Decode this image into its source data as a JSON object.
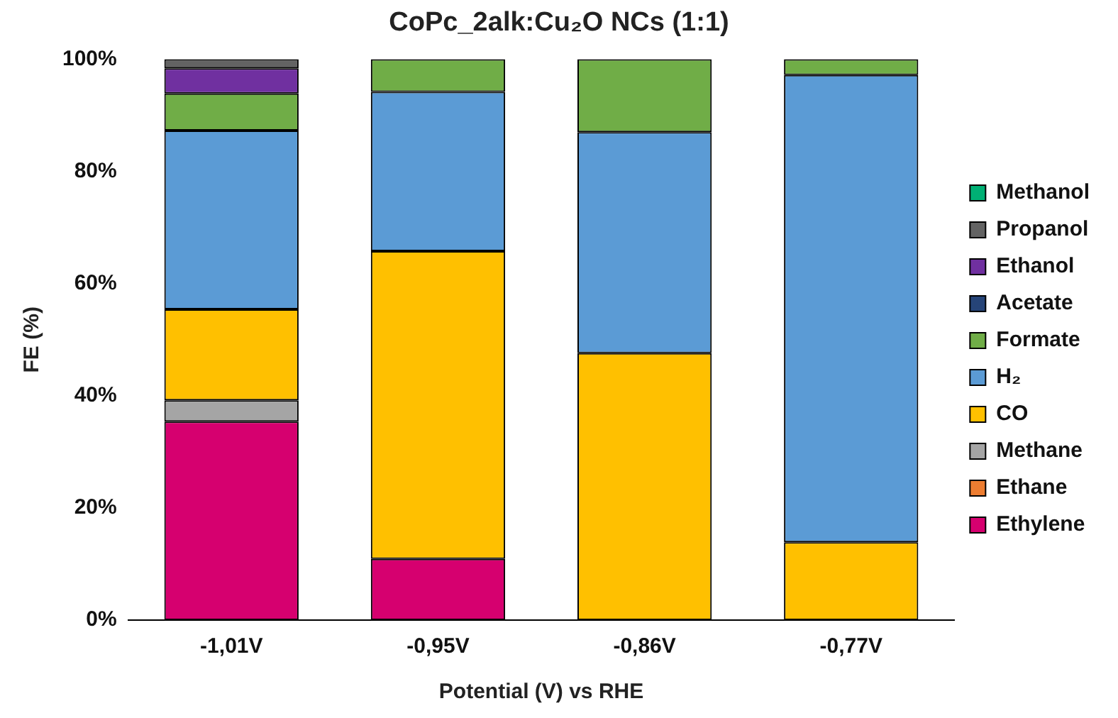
{
  "chart_data": {
    "type": "bar",
    "stacked": true,
    "title": "CoPc_2alk:Cu₂O NCs (1:1)",
    "xlabel": "Potential (V) vs RHE",
    "ylabel": "FE (%)",
    "categories": [
      "-1,01V",
      "-0,95V",
      "-0,86V",
      "-0,77V"
    ],
    "series": [
      {
        "name": "Ethylene",
        "color": "#d6006f",
        "values": [
          35.4,
          10.9,
          0,
          0
        ]
      },
      {
        "name": "Ethane",
        "color": "#ed7d31",
        "values": [
          0,
          0,
          0,
          0
        ]
      },
      {
        "name": "Methane",
        "color": "#a5a5a5",
        "values": [
          3.8,
          0,
          0,
          0
        ]
      },
      {
        "name": "CO",
        "color": "#ffc000",
        "values": [
          16.2,
          54.9,
          47.6,
          13.9
        ]
      },
      {
        "name": "H₂",
        "color": "#5b9bd5",
        "values": [
          31.9,
          28.4,
          39.4,
          83.3
        ]
      },
      {
        "name": "Formate",
        "color": "#70ad47",
        "values": [
          6.6,
          5.8,
          13.0,
          2.8
        ]
      },
      {
        "name": "Acetate",
        "color": "#264478",
        "values": [
          0,
          0,
          0,
          0
        ]
      },
      {
        "name": "Ethanol",
        "color": "#7030a0",
        "values": [
          4.5,
          0,
          0,
          0
        ]
      },
      {
        "name": "Propanol",
        "color": "#636363",
        "values": [
          1.6,
          0,
          0,
          0
        ]
      },
      {
        "name": "Methanol",
        "color": "#00b074",
        "values": [
          0,
          0,
          0,
          0
        ]
      }
    ],
    "ylim": [
      0,
      100
    ],
    "yticks": [
      {
        "value": 0,
        "label": "0%"
      },
      {
        "value": 20,
        "label": "20%"
      },
      {
        "value": 40,
        "label": "40%"
      },
      {
        "value": 60,
        "label": "60%"
      },
      {
        "value": 80,
        "label": "80%"
      },
      {
        "value": 100,
        "label": "100%"
      }
    ],
    "grid": false,
    "legend": "right"
  }
}
